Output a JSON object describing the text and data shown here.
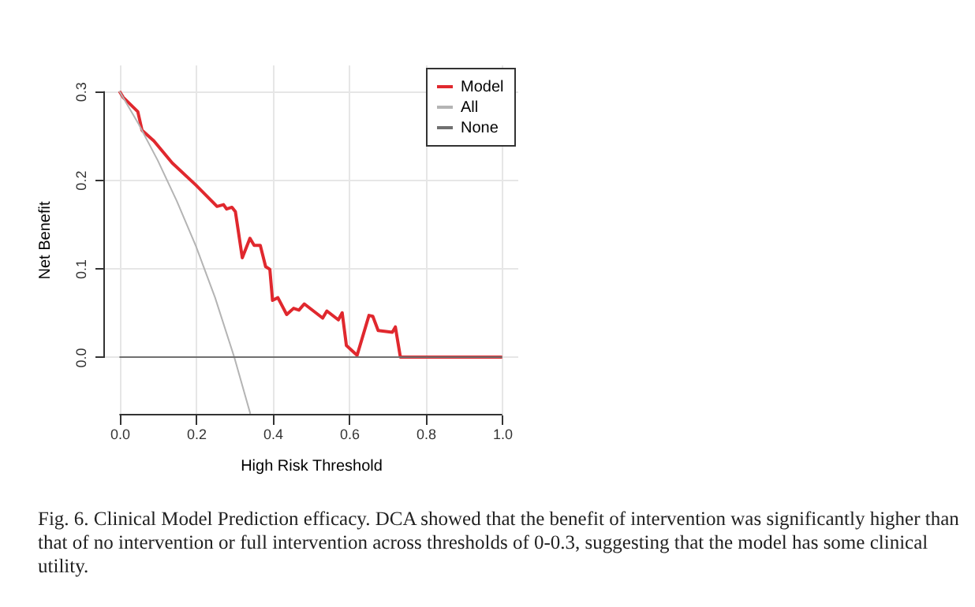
{
  "chart_data": {
    "type": "line",
    "xlabel": "High Risk Threshold",
    "ylabel": "Net Benefit",
    "xlim": [
      -0.04,
      1.04
    ],
    "ylim": [
      -0.065,
      0.33
    ],
    "xticks": [
      {
        "value": 0,
        "label": "0.0"
      },
      0.2,
      0.4,
      0.6,
      0.8,
      {
        "value": 1,
        "label": "1.0"
      }
    ],
    "yticks": [
      {
        "value": 0,
        "label": "0.0"
      },
      {
        "value": 0.1,
        "label": "0.1"
      },
      {
        "value": 0.2,
        "label": "0.2"
      },
      {
        "value": 0.3,
        "label": "0.3"
      }
    ],
    "grid": true,
    "legend": "top right",
    "line_style": "solid",
    "marker": "none",
    "series": [
      {
        "name": "Model",
        "color": "#e0282e",
        "x": [
          0,
          0.01,
          0.048,
          0.059,
          0.09,
          0.138,
          0.2,
          0.255,
          0.272,
          0.28,
          0.294,
          0.303,
          0.321,
          0.341,
          0.352,
          0.368,
          0.382,
          0.393,
          0.4,
          0.414,
          0.437,
          0.455,
          0.469,
          0.483,
          0.531,
          0.542,
          0.572,
          0.582,
          0.593,
          0.621,
          0.652,
          0.662,
          0.676,
          0.713,
          0.721,
          0.734,
          1
        ],
        "values": [
          0.3,
          0.293,
          0.277,
          0.256,
          0.244,
          0.219,
          0.194,
          0.17,
          0.172,
          0.167,
          0.169,
          0.164,
          0.112,
          0.134,
          0.126,
          0.126,
          0.102,
          0.099,
          0.064,
          0.067,
          0.048,
          0.055,
          0.053,
          0.06,
          0.044,
          0.052,
          0.042,
          0.05,
          0.013,
          0.002,
          0.047,
          0.046,
          0.03,
          0.028,
          0.034,
          0,
          0
        ]
      },
      {
        "name": "All",
        "color": "#b4b4b4",
        "x": [
          0,
          0.05,
          0.1,
          0.15,
          0.2,
          0.25,
          0.3,
          0.342
        ],
        "values": [
          0.3,
          0.263,
          0.222,
          0.176,
          0.125,
          0.067,
          0,
          -0.064
        ]
      },
      {
        "name": "None",
        "color": "#707070",
        "x": [
          0,
          1
        ],
        "values": [
          0,
          0
        ]
      }
    ],
    "annotations": [
      "Fig. 6. Clinical Model Prediction efficacy. DCA showed that the benefit of intervention was significantly higher than that of no intervention or full intervention across thresholds of 0-0.3, suggesting that the model has some clinical utility."
    ]
  }
}
